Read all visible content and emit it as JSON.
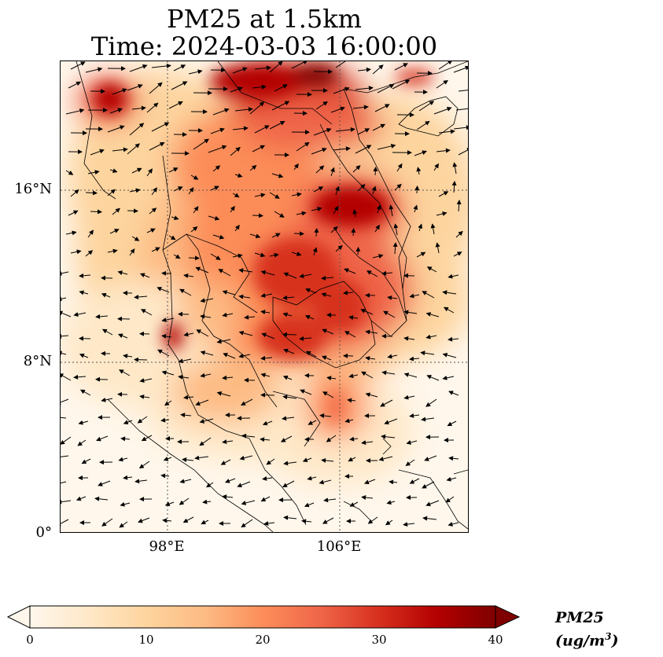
{
  "figure": {
    "title_line1": "PM25 at 1.5km",
    "title_line2": "Time: 2024-03-03 16:00:00"
  },
  "map": {
    "lat_ticks": [
      "16°N",
      "8°N",
      "0°"
    ],
    "lon_ticks": [
      "98°E",
      "106°E"
    ],
    "lon_range": [
      93,
      112
    ],
    "lat_range": [
      0,
      22
    ],
    "gridlines": "dotted",
    "field": "PM25",
    "colormap": "OrRd",
    "colors": {
      "low": "#fff7ec",
      "mid": "#fdbb84",
      "high": "#d7301f",
      "max": "#7f0000",
      "coast": "#000000"
    }
  },
  "colorbar": {
    "ticks": [
      "0",
      "10",
      "20",
      "30",
      "40"
    ],
    "range": [
      0,
      40
    ],
    "extend": "both",
    "label_main": "PM25 (ug/m",
    "label_sup": "3",
    "label_end": ")"
  }
}
